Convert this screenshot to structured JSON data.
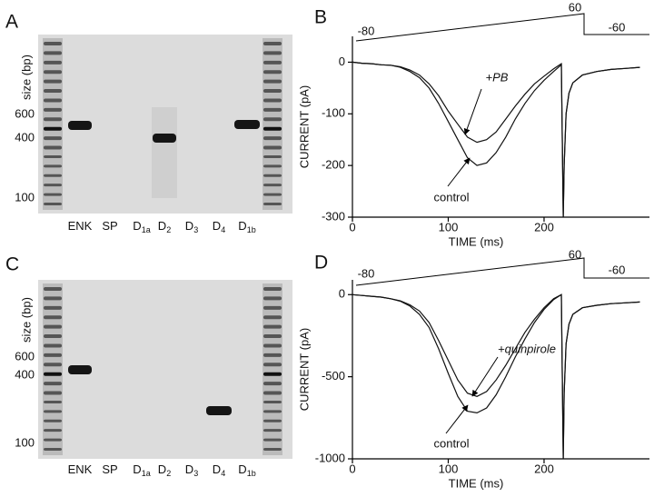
{
  "gels": [
    {
      "panel": "A",
      "y_label": "size (bp)",
      "size_ticks": [
        "600",
        "400",
        "100"
      ],
      "lanes": [
        {
          "name": "ENK"
        },
        {
          "name": "SP"
        },
        {
          "name": "D",
          "sub": "1a"
        },
        {
          "name": "D",
          "sub": "2"
        },
        {
          "name": "D",
          "sub": "3"
        },
        {
          "name": "D",
          "sub": "4"
        },
        {
          "name": "D",
          "sub": "1b"
        }
      ]
    },
    {
      "panel": "C",
      "y_label": "size (bp)",
      "size_ticks": [
        "600",
        "400",
        "100"
      ],
      "lanes": [
        {
          "name": "ENK"
        },
        {
          "name": "SP"
        },
        {
          "name": "D",
          "sub": "1a"
        },
        {
          "name": "D",
          "sub": "2"
        },
        {
          "name": "D",
          "sub": "3"
        },
        {
          "name": "D",
          "sub": "4"
        },
        {
          "name": "D",
          "sub": "1b"
        }
      ]
    }
  ],
  "chart_data": [
    {
      "type": "line",
      "panel": "B",
      "xlabel": "TIME (ms)",
      "ylabel": "CURRENT (pA)",
      "protocol_labels": [
        "-80",
        "60",
        "-60"
      ],
      "x": [
        0,
        10,
        20,
        30,
        40,
        50,
        60,
        70,
        80,
        90,
        100,
        110,
        120,
        130,
        140,
        150,
        160,
        170,
        180,
        190,
        200,
        210,
        218,
        220,
        221,
        223,
        226,
        230,
        240,
        255,
        270,
        285,
        300
      ],
      "series": [
        {
          "name": "control",
          "color": "#111111",
          "values": [
            0,
            -2,
            -3,
            -5,
            -6,
            -10,
            -18,
            -30,
            -50,
            -80,
            -115,
            -150,
            -185,
            -200,
            -195,
            -175,
            -145,
            -110,
            -80,
            -55,
            -35,
            -18,
            -5,
            -300,
            -200,
            -100,
            -60,
            -40,
            -25,
            -18,
            -14,
            -12,
            -10
          ]
        },
        {
          "name": "+PB",
          "color": "#111111",
          "values": [
            0,
            -2,
            -3,
            -5,
            -6,
            -9,
            -15,
            -25,
            -42,
            -65,
            -95,
            -120,
            -145,
            -155,
            -150,
            -135,
            -110,
            -85,
            -62,
            -42,
            -27,
            -13,
            -3,
            -300,
            -200,
            -100,
            -60,
            -40,
            -25,
            -18,
            -14,
            -12,
            -10
          ]
        }
      ],
      "xlim": [
        0,
        310
      ],
      "ylim": [
        -300,
        50
      ],
      "xticks": [
        0,
        100,
        200
      ],
      "yticks": [
        0,
        -100,
        -200,
        -300
      ]
    },
    {
      "type": "line",
      "panel": "D",
      "xlabel": "TIME (ms)",
      "ylabel": "CURRENT (pA)",
      "protocol_labels": [
        "-80",
        "60",
        "-60"
      ],
      "x": [
        0,
        10,
        20,
        30,
        40,
        50,
        60,
        70,
        80,
        90,
        100,
        110,
        120,
        130,
        140,
        150,
        160,
        170,
        180,
        190,
        200,
        210,
        218,
        220,
        221,
        223,
        226,
        230,
        240,
        255,
        270,
        285,
        300
      ],
      "series": [
        {
          "name": "control",
          "color": "#111111",
          "values": [
            0,
            -5,
            -10,
            -15,
            -25,
            -40,
            -70,
            -120,
            -200,
            -330,
            -480,
            -620,
            -710,
            -720,
            -690,
            -610,
            -500,
            -380,
            -270,
            -170,
            -90,
            -30,
            0,
            -1000,
            -600,
            -300,
            -180,
            -120,
            -80,
            -65,
            -55,
            -50,
            -45
          ]
        },
        {
          "name": "+quinpirole",
          "color": "#111111",
          "values": [
            0,
            -5,
            -10,
            -15,
            -25,
            -38,
            -62,
            -100,
            -170,
            -280,
            -400,
            -520,
            -600,
            -620,
            -590,
            -520,
            -430,
            -330,
            -230,
            -150,
            -80,
            -25,
            0,
            -1000,
            -600,
            -300,
            -180,
            -120,
            -80,
            -65,
            -55,
            -50,
            -45
          ]
        }
      ],
      "xlim": [
        0,
        310
      ],
      "ylim": [
        -1000,
        90
      ],
      "xticks": [
        0,
        100,
        200
      ],
      "yticks": [
        0,
        -500,
        -1000
      ]
    }
  ]
}
